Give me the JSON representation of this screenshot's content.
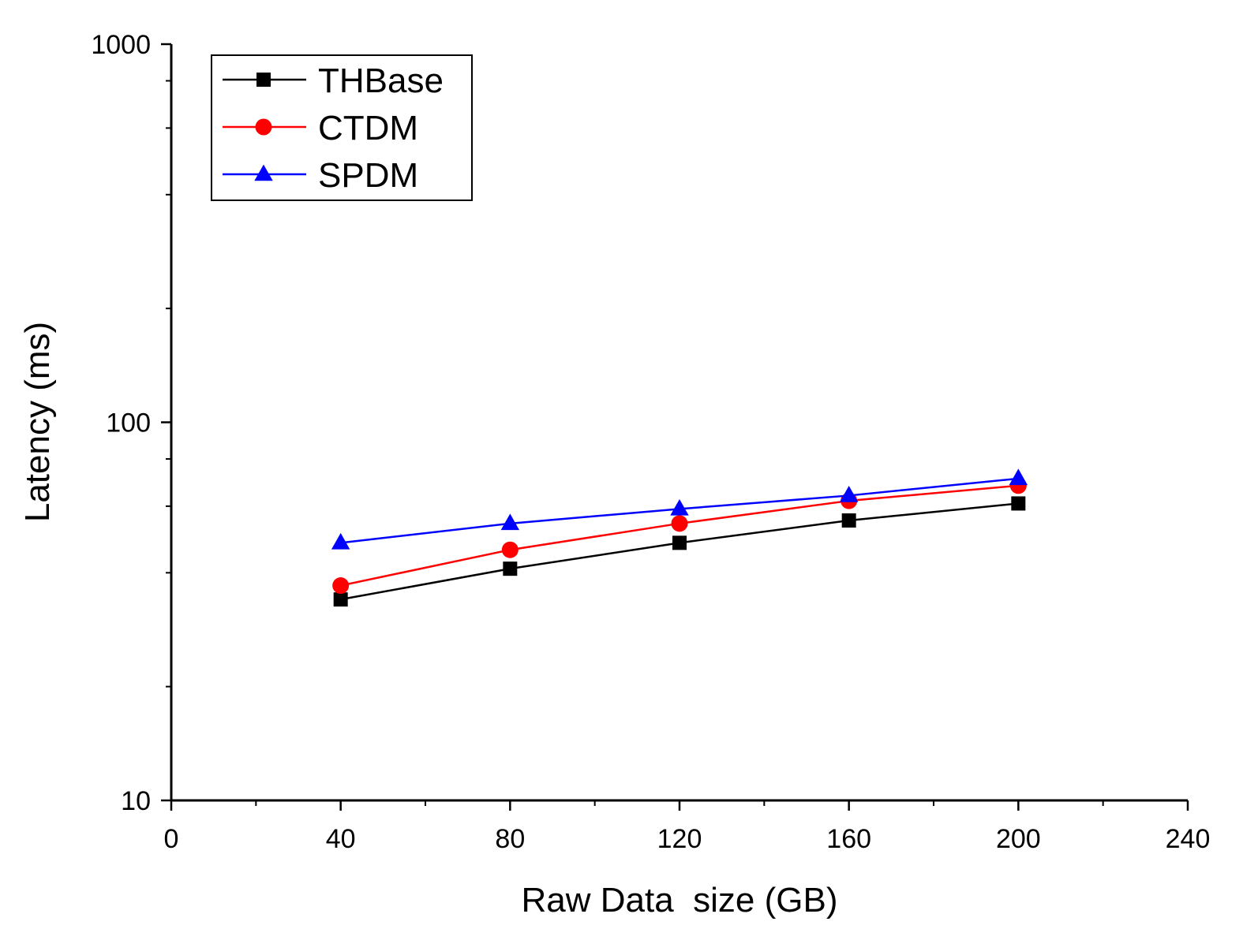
{
  "chart_data": {
    "type": "line",
    "title": "",
    "xlabel": "Raw Data  size (GB)",
    "ylabel": "Latency (ms)",
    "x": [
      40,
      80,
      120,
      160,
      200
    ],
    "xlim": [
      0,
      240
    ],
    "x_ticks": [
      0,
      40,
      80,
      120,
      160,
      200,
      240
    ],
    "x_tick_labels": [
      "0",
      "40",
      "80",
      "120",
      "160",
      "200",
      "240"
    ],
    "ylim": [
      10,
      1000
    ],
    "y_scale": "log",
    "y_ticks": [
      10,
      100,
      1000
    ],
    "y_tick_labels": [
      "10",
      "100",
      "1000"
    ],
    "grid": false,
    "legend_position": "top-left",
    "series": [
      {
        "name": "THBase",
        "color": "#000000",
        "marker": "square",
        "values": [
          34,
          41,
          48,
          55,
          61
        ]
      },
      {
        "name": "CTDM",
        "color": "#ff0000",
        "marker": "circle",
        "values": [
          37,
          46,
          54,
          62,
          68
        ]
      },
      {
        "name": "SPDM",
        "color": "#0000ff",
        "marker": "triangle",
        "values": [
          48,
          54,
          59,
          64,
          71
        ]
      }
    ]
  }
}
